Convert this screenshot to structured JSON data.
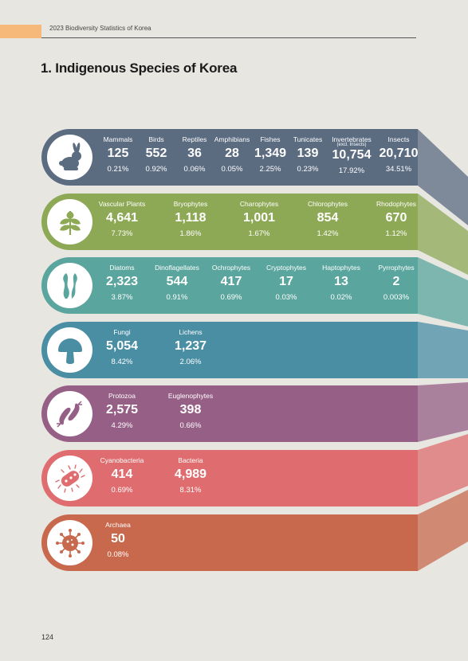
{
  "header": {
    "text": "2023 Biodiversity Statistics of Korea"
  },
  "title": "1. Indigenous Species of Korea",
  "page_number": "124",
  "colors": {
    "animals": "#5b6b80",
    "plants": "#8ea955",
    "algae": "#5aa59d",
    "fungi": "#4a8ea4",
    "protozoa": "#965f86",
    "bacteria": "#df6d6f",
    "archaea": "#c8694d",
    "accent_tab": "#f7b97a"
  },
  "groups": [
    {
      "icon": "rabbit-icon",
      "stats": [
        {
          "label": "Mammals",
          "value": "125",
          "percent": "0.21%"
        },
        {
          "label": "Birds",
          "value": "552",
          "percent": "0.92%"
        },
        {
          "label": "Reptiles",
          "value": "36",
          "percent": "0.06%"
        },
        {
          "label": "Amphibians",
          "value": "28",
          "percent": "0.05%"
        },
        {
          "label": "Fishes",
          "value": "1,349",
          "percent": "2.25%"
        },
        {
          "label": "Tunicates",
          "value": "139",
          "percent": "0.23%"
        },
        {
          "label": "Invertebrates",
          "sublabel": "(excl. Insects)",
          "value": "10,754",
          "percent": "17.92%"
        },
        {
          "label": "Insects",
          "value": "20,710",
          "percent": "34.51%"
        }
      ]
    },
    {
      "icon": "leaf-icon",
      "stats": [
        {
          "label": "Vascular Plants",
          "value": "4,641",
          "percent": "7.73%"
        },
        {
          "label": "Bryophytes",
          "value": "1,118",
          "percent": "1.86%"
        },
        {
          "label": "Charophytes",
          "value": "1,001",
          "percent": "1.67%"
        },
        {
          "label": "Chlorophytes",
          "value": "854",
          "percent": "1.42%"
        },
        {
          "label": "Rhodophytes",
          "value": "670",
          "percent": "1.12%"
        }
      ]
    },
    {
      "icon": "seaweed-icon",
      "stats": [
        {
          "label": "Diatoms",
          "value": "2,323",
          "percent": "3.87%"
        },
        {
          "label": "Dinoflagellates",
          "value": "544",
          "percent": "0.91%"
        },
        {
          "label": "Ochrophytes",
          "value": "417",
          "percent": "0.69%"
        },
        {
          "label": "Cryptophytes",
          "value": "17",
          "percent": "0.03%"
        },
        {
          "label": "Haptophytes",
          "value": "13",
          "percent": "0.02%"
        },
        {
          "label": "Pyrrophytes",
          "value": "2",
          "percent": "0.003%"
        }
      ]
    },
    {
      "icon": "mushroom-icon",
      "stats": [
        {
          "label": "Fungi",
          "value": "5,054",
          "percent": "8.42%"
        },
        {
          "label": "Lichens",
          "value": "1,237",
          "percent": "2.06%"
        }
      ]
    },
    {
      "icon": "protozoa-icon",
      "stats": [
        {
          "label": "Protozoa",
          "value": "2,575",
          "percent": "4.29%"
        },
        {
          "label": "Euglenophytes",
          "value": "398",
          "percent": "0.66%"
        }
      ]
    },
    {
      "icon": "bacteria-icon",
      "stats": [
        {
          "label": "Cyanobacteria",
          "value": "414",
          "percent": "0.69%"
        },
        {
          "label": "Bacteria",
          "value": "4,989",
          "percent": "8.31%"
        }
      ]
    },
    {
      "icon": "virus-icon",
      "stats": [
        {
          "label": "Archaea",
          "value": "50",
          "percent": "0.08%"
        }
      ]
    }
  ]
}
